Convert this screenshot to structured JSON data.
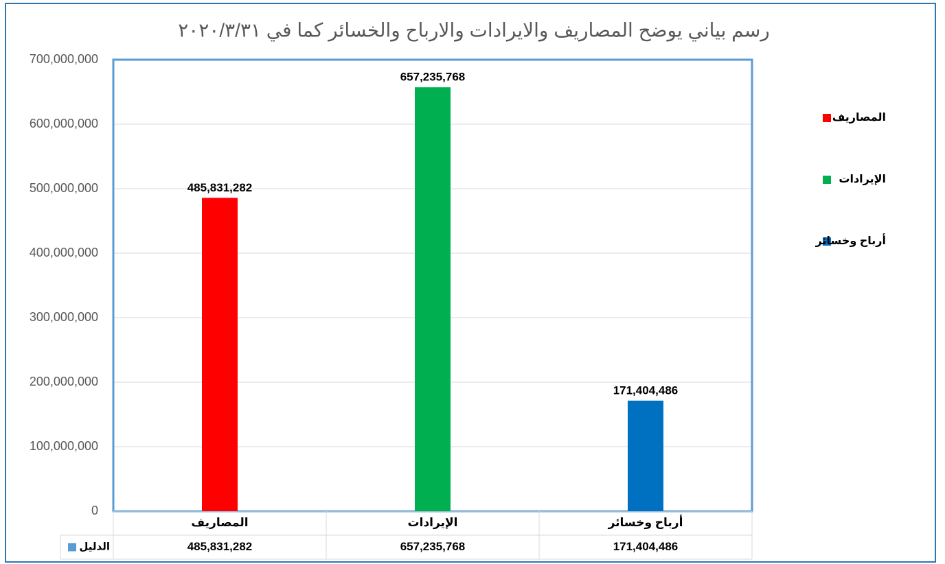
{
  "chart_data": {
    "type": "bar",
    "title": "رسم بياني يوضح المصاريف والايرادات والارباح والخسائر كما في ٢٠٢٠/٣/٣١",
    "categories": [
      "المصاريف",
      "الإيرادات",
      "أرباح وخسائر"
    ],
    "series": [
      {
        "name": "الدليل",
        "color": "#5b9bd5",
        "values": [
          485831282,
          657235768,
          171404486
        ],
        "value_labels": [
          "485,831,282",
          "657,235,768",
          "171,404,486"
        ],
        "point_colors": [
          "#ff0000",
          "#00b050",
          "#0070c0"
        ]
      }
    ],
    "ylim": [
      0,
      700000000
    ],
    "yticks": [
      0,
      {
        "value": 100000000,
        "label": "100,000,000"
      },
      {
        "value": 200000000,
        "label": "200,000,000"
      },
      {
        "value": 300000000,
        "label": "300,000,000"
      },
      {
        "value": 400000000,
        "label": "400,000,000"
      },
      {
        "value": 500000000,
        "label": "500,000,000"
      },
      {
        "value": 600000000,
        "label": "600,000,000"
      },
      {
        "value": 700000000,
        "label": "700,000,000"
      }
    ],
    "grid": true,
    "legend": "right",
    "data_table": true
  }
}
